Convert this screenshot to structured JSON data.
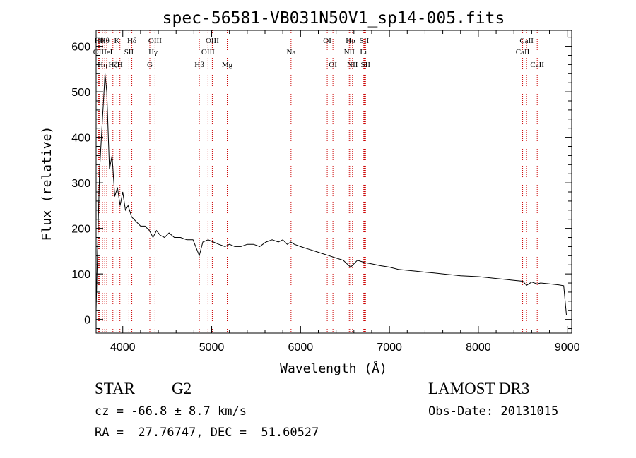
{
  "chart_data": {
    "type": "line",
    "title": "spec-56581-VB031N50V1_sp14-005.fits",
    "xlabel": "Wavelength (Å)",
    "ylabel": "Flux (relative)",
    "xlim": [
      3700,
      9050
    ],
    "ylim": [
      -30,
      635
    ],
    "x_ticks": [
      4000,
      5000,
      6000,
      7000,
      8000,
      9000
    ],
    "y_ticks": [
      0,
      100,
      200,
      300,
      400,
      500,
      600
    ],
    "x_tick_labels": [
      "4000",
      "5000",
      "6000",
      "7000",
      "8000",
      "9000"
    ],
    "y_tick_labels": [
      "0",
      "100",
      "200",
      "300",
      "400",
      "500",
      "600"
    ],
    "series": [
      {
        "name": "flux",
        "x": [
          3700,
          3720,
          3740,
          3760,
          3780,
          3800,
          3820,
          3850,
          3880,
          3910,
          3940,
          3970,
          4000,
          4030,
          4060,
          4100,
          4150,
          4200,
          4250,
          4300,
          4340,
          4380,
          4420,
          4470,
          4520,
          4580,
          4650,
          4720,
          4790,
          4861,
          4900,
          4960,
          5020,
          5080,
          5150,
          5200,
          5260,
          5330,
          5400,
          5470,
          5540,
          5610,
          5680,
          5750,
          5800,
          5850,
          5890,
          5930,
          6000,
          6080,
          6160,
          6240,
          6320,
          6400,
          6480,
          6563,
          6640,
          6720,
          6800,
          6900,
          7000,
          7100,
          7200,
          7300,
          7400,
          7500,
          7600,
          7700,
          7800,
          7900,
          8000,
          8100,
          8200,
          8300,
          8400,
          8500,
          8542,
          8600,
          8662,
          8700,
          8800,
          8900,
          8960,
          8990
        ],
        "y": [
          20,
          180,
          330,
          400,
          470,
          540,
          500,
          330,
          360,
          270,
          290,
          250,
          280,
          240,
          250,
          225,
          215,
          205,
          205,
          195,
          180,
          195,
          185,
          180,
          190,
          180,
          180,
          175,
          175,
          140,
          170,
          175,
          170,
          165,
          160,
          165,
          160,
          160,
          165,
          165,
          160,
          170,
          175,
          170,
          175,
          165,
          170,
          165,
          160,
          155,
          150,
          145,
          140,
          135,
          130,
          115,
          130,
          125,
          122,
          118,
          115,
          110,
          108,
          106,
          104,
          102,
          100,
          98,
          96,
          95,
          94,
          92,
          90,
          88,
          86,
          84,
          75,
          82,
          78,
          80,
          78,
          76,
          74,
          10
        ]
      }
    ],
    "line_markers": [
      {
        "wavelength": 3735,
        "label": "Hθ",
        "row": 1
      },
      {
        "wavelength": 3727,
        "label": "OII",
        "row": 2
      },
      {
        "wavelength": 3771,
        "label": "Hη",
        "row": 3
      },
      {
        "wavelength": 3797,
        "label": "Hθ",
        "row": 1
      },
      {
        "wavelength": 3820,
        "label": "HeI",
        "row": 2
      },
      {
        "wavelength": 3889,
        "label": "Hζ",
        "row": 3
      },
      {
        "wavelength": 3934,
        "label": "K",
        "row": 1
      },
      {
        "wavelength": 3968,
        "label": "H",
        "row": 3
      },
      {
        "wavelength": 4069,
        "label": "SII",
        "row": 2
      },
      {
        "wavelength": 4102,
        "label": "Hδ",
        "row": 1
      },
      {
        "wavelength": 4304,
        "label": "G",
        "row": 3
      },
      {
        "wavelength": 4340,
        "label": "Hγ",
        "row": 2
      },
      {
        "wavelength": 4363,
        "label": "OIII",
        "row": 1
      },
      {
        "wavelength": 4861,
        "label": "Hβ",
        "row": 3
      },
      {
        "wavelength": 4959,
        "label": "OIII",
        "row": 2
      },
      {
        "wavelength": 5007,
        "label": "OIII",
        "row": 1
      },
      {
        "wavelength": 5175,
        "label": "Mg",
        "row": 3
      },
      {
        "wavelength": 5893,
        "label": "Na",
        "row": 2
      },
      {
        "wavelength": 6300,
        "label": "OI",
        "row": 1
      },
      {
        "wavelength": 6364,
        "label": "OI",
        "row": 3
      },
      {
        "wavelength": 6548,
        "label": "NII",
        "row": 2
      },
      {
        "wavelength": 6563,
        "label": "Hα",
        "row": 1
      },
      {
        "wavelength": 6584,
        "label": "NII",
        "row": 3
      },
      {
        "wavelength": 6707,
        "label": "Li",
        "row": 2
      },
      {
        "wavelength": 6717,
        "label": "SII",
        "row": 1
      },
      {
        "wavelength": 6731,
        "label": "SII",
        "row": 3
      },
      {
        "wavelength": 8498,
        "label": "CaII",
        "row": 2
      },
      {
        "wavelength": 8542,
        "label": "CaII",
        "row": 1
      },
      {
        "wavelength": 8662,
        "label": "CaII",
        "row": 3
      }
    ]
  },
  "footer": {
    "object_class": "STAR",
    "subclass": "G2",
    "redshift_text": "cz = -66.8 ± 8.7 km/s",
    "coords_text": "RA =  27.76747, DEC =  51.60527",
    "survey": "LAMOST DR3",
    "obs_date_text": "Obs-Date: 20131015"
  },
  "colors": {
    "line": "#000000",
    "marker": "#cc0000",
    "axis": "#000000"
  }
}
